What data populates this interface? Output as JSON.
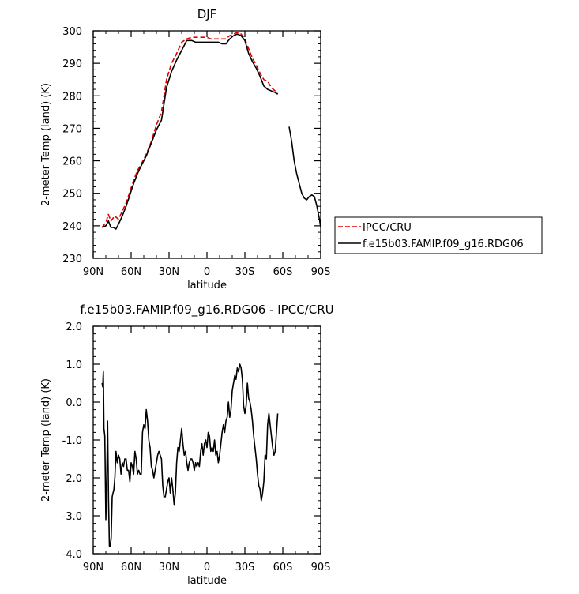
{
  "chart_data": [
    {
      "type": "line",
      "title": "DJF",
      "xlabel": "latitude",
      "ylabel": "2-meter Temp (land) (K)",
      "x_direction": "north-to-south",
      "xlim": [
        90,
        -90
      ],
      "ylim": [
        230,
        300
      ],
      "xticks": [
        90,
        60,
        30,
        0,
        -30,
        -60,
        -90
      ],
      "xtick_labels": [
        "90N",
        "60N",
        "30N",
        "0",
        "30S",
        "60S",
        "90S"
      ],
      "yticks": [
        230,
        240,
        250,
        260,
        270,
        280,
        290,
        300
      ],
      "ytick_labels": [
        "230",
        "240",
        "250",
        "260",
        "270",
        "280",
        "290",
        "300"
      ],
      "grid": false,
      "legend_position": "right, outside plot",
      "series": [
        {
          "name": "IPCC/CRU",
          "color": "#e00000",
          "style": "dashed",
          "x": [
            83,
            80,
            78,
            76,
            73,
            70,
            67,
            64,
            61,
            58,
            55,
            52,
            48,
            44,
            40,
            36,
            32,
            28,
            24,
            20,
            16,
            12,
            9,
            6,
            3,
            0,
            -3,
            -6,
            -9,
            -12,
            -15,
            -18,
            -21,
            -24,
            -27,
            -30,
            -33,
            -36,
            -39,
            -42,
            -45,
            -48,
            -51,
            -54,
            -56
          ],
          "y": [
            239.5,
            241.0,
            243.5,
            241.5,
            243.0,
            242.0,
            244.5,
            247.0,
            250.5,
            254.0,
            257.0,
            259.0,
            262.0,
            266.0,
            271.0,
            275.0,
            285.0,
            290.0,
            293.0,
            296.5,
            297.5,
            298.0,
            298.0,
            298.0,
            298.0,
            298.0,
            297.5,
            297.5,
            297.5,
            297.5,
            297.5,
            298.5,
            299.0,
            299.5,
            299.0,
            297.5,
            294.5,
            291.5,
            289.5,
            287.0,
            285.0,
            284.5,
            282.5,
            281.5,
            280.5
          ]
        },
        {
          "name": "f.e15b03.FAMIP.f09_g16.RDG06",
          "color": "#000000",
          "style": "solid",
          "x": [
            83,
            80,
            78,
            76,
            74,
            72,
            70,
            67,
            64,
            61,
            58,
            55,
            52,
            48,
            44,
            40,
            36,
            32,
            28,
            24,
            20,
            16,
            12,
            9,
            6,
            3,
            0,
            -3,
            -6,
            -9,
            -12,
            -15,
            -18,
            -21,
            -24,
            -27,
            -30,
            -33,
            -36,
            -39,
            -42,
            -45,
            -48,
            -51,
            -54,
            -56
          ],
          "y": [
            239.5,
            240.0,
            241.5,
            239.5,
            239.5,
            239.0,
            240.5,
            243.0,
            246.0,
            249.5,
            253.0,
            256.0,
            258.5,
            261.5,
            265.5,
            269.5,
            272.5,
            282.5,
            287.5,
            291.0,
            294.0,
            297.0,
            297.0,
            296.5,
            296.5,
            296.5,
            296.5,
            296.5,
            296.5,
            296.5,
            296.0,
            296.0,
            297.5,
            298.5,
            299.0,
            298.5,
            297.0,
            293.0,
            290.5,
            288.5,
            286.0,
            283.0,
            282.0,
            281.5,
            281.0,
            280.5
          ]
        },
        {
          "name": "f.e15b03.FAMIP.f09_g16.RDG06",
          "color": "#000000",
          "style": "solid",
          "x": [
            -65,
            -67,
            -69,
            -71,
            -73,
            -75,
            -77,
            -79,
            -81,
            -83,
            -85,
            -87,
            -89,
            -90
          ],
          "y": [
            270.5,
            266.0,
            260.0,
            256.0,
            253.0,
            250.0,
            248.5,
            248.0,
            249.0,
            249.5,
            249.0,
            246.0,
            242.0,
            239.5
          ]
        }
      ]
    },
    {
      "type": "line",
      "title": "f.e15b03.FAMIP.f09_g16.RDG06 - IPCC/CRU",
      "xlabel": "latitude",
      "ylabel": "2-meter Temp (land) (K)",
      "x_direction": "north-to-south",
      "xlim": [
        90,
        -90
      ],
      "ylim": [
        -4.0,
        2.0
      ],
      "xticks": [
        90,
        60,
        30,
        0,
        -30,
        -60,
        -90
      ],
      "xtick_labels": [
        "90N",
        "60N",
        "30N",
        "0",
        "30S",
        "60S",
        "90S"
      ],
      "yticks": [
        -4.0,
        -3.0,
        -2.0,
        -1.0,
        0.0,
        1.0,
        2.0
      ],
      "ytick_labels": [
        "-4.0",
        "-3.0",
        "-2.0",
        "-1.0",
        "0.0",
        "1.0",
        "2.0"
      ],
      "grid": false,
      "series": [
        {
          "color": "#000000",
          "style": "solid",
          "x": [
            83,
            82.5,
            82,
            81.5,
            80.8,
            80,
            79.3,
            78.6,
            77.9,
            77.2,
            76.5,
            75.8,
            75,
            74.3,
            73.6,
            72.9,
            72,
            71,
            70,
            69,
            68,
            67,
            66,
            65,
            64,
            63,
            62,
            61,
            60,
            59,
            58,
            57,
            56,
            55,
            54,
            53,
            52,
            51,
            50,
            49,
            48,
            47,
            46,
            45,
            44,
            43,
            42,
            41,
            40,
            39,
            38,
            37,
            36,
            35,
            34,
            33,
            32,
            31,
            30,
            29,
            28,
            27,
            26,
            25,
            24,
            23,
            22,
            21,
            20,
            19,
            18,
            17,
            16,
            15,
            14,
            13,
            12,
            11,
            10,
            9,
            8,
            7,
            6,
            5,
            4,
            3,
            2,
            1,
            0,
            -1,
            -2,
            -3,
            -4,
            -5,
            -6,
            -7,
            -8,
            -9,
            -10,
            -11,
            -12,
            -13,
            -14,
            -15,
            -16,
            -17,
            -18,
            -19,
            -20,
            -21,
            -22,
            -23,
            -24,
            -25,
            -26,
            -27,
            -28,
            -29,
            -30,
            -31,
            -32,
            -33,
            -34,
            -35,
            -36,
            -37,
            -38,
            -39,
            -40,
            -41,
            -42,
            -43,
            -44,
            -45,
            -46,
            -47,
            -48,
            -49,
            -50,
            -51,
            -52,
            -53,
            -54,
            -55,
            -56
          ],
          "y": [
            0.5,
            0.4,
            0.8,
            -0.7,
            -0.9,
            -3.1,
            -2.1,
            -0.5,
            -2.6,
            -3.8,
            -3.8,
            -3.6,
            -2.5,
            -2.4,
            -2.3,
            -2.0,
            -1.3,
            -1.6,
            -1.4,
            -1.5,
            -1.9,
            -1.6,
            -1.7,
            -1.5,
            -1.5,
            -1.8,
            -1.8,
            -2.1,
            -1.6,
            -1.7,
            -1.9,
            -1.3,
            -1.5,
            -1.9,
            -1.8,
            -1.9,
            -1.9,
            -0.8,
            -0.6,
            -0.7,
            -0.2,
            -0.5,
            -1.0,
            -1.2,
            -1.7,
            -1.8,
            -2.0,
            -1.8,
            -1.6,
            -1.4,
            -1.3,
            -1.4,
            -1.5,
            -2.2,
            -2.5,
            -2.5,
            -2.3,
            -2.1,
            -2.0,
            -2.4,
            -2.0,
            -2.3,
            -2.7,
            -2.4,
            -1.6,
            -1.2,
            -1.3,
            -1.0,
            -0.7,
            -1.1,
            -1.4,
            -1.3,
            -1.6,
            -1.8,
            -1.6,
            -1.5,
            -1.5,
            -1.6,
            -1.8,
            -1.6,
            -1.7,
            -1.6,
            -1.7,
            -1.3,
            -1.1,
            -1.4,
            -1.1,
            -1.0,
            -1.2,
            -0.8,
            -0.9,
            -1.3,
            -1.2,
            -1.3,
            -1.0,
            -1.4,
            -1.3,
            -1.6,
            -1.4,
            -1.1,
            -0.8,
            -0.6,
            -0.8,
            -0.5,
            -0.4,
            0.0,
            -0.4,
            -0.2,
            0.3,
            0.5,
            0.7,
            0.6,
            0.9,
            0.8,
            1.0,
            0.9,
            0.6,
            -0.1,
            -0.3,
            -0.1,
            0.5,
            0.1,
            0.0,
            -0.2,
            -0.5,
            -0.9,
            -1.2,
            -1.5,
            -1.9,
            -2.2,
            -2.3,
            -2.6,
            -2.4,
            -2.1,
            -1.4,
            -1.5,
            -0.6,
            -0.3,
            -0.6,
            -0.9,
            -1.2,
            -1.4,
            -1.3,
            -0.8,
            -0.3
          ]
        }
      ]
    }
  ]
}
